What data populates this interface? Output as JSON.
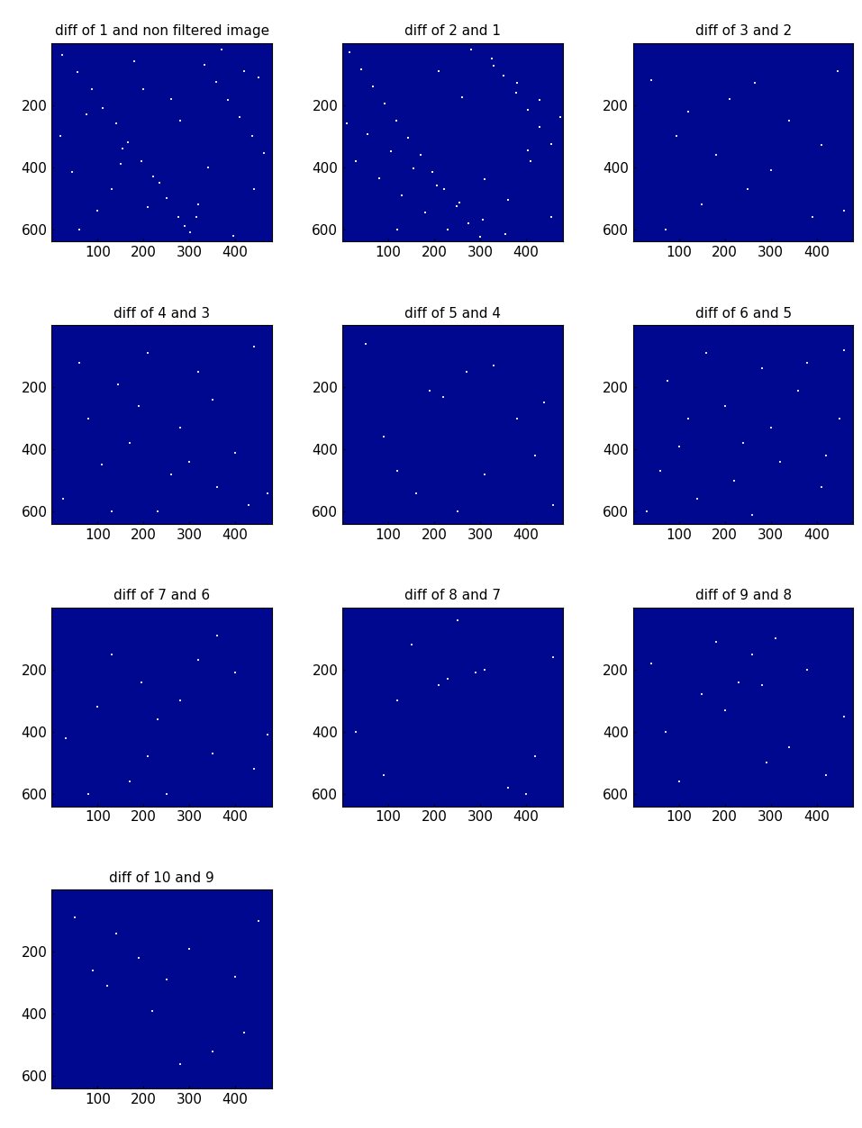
{
  "chart_data": [
    {
      "type": "scatter",
      "title": "diff of 1 and non filtered image",
      "color": "#cfe8ff",
      "marker": "s",
      "x": [
        23,
        57,
        88,
        112,
        140,
        167,
        195,
        221,
        250,
        276,
        301,
        333,
        359,
        384,
        410,
        437,
        462,
        45,
        130,
        210,
        290,
        370,
        450,
        75,
        155,
        235,
        315,
        395,
        18,
        260,
        100,
        180,
        340,
        420,
        60,
        280,
        440,
        200,
        320,
        150
      ],
      "y": [
        40,
        95,
        150,
        210,
        260,
        320,
        380,
        430,
        500,
        560,
        610,
        70,
        125,
        185,
        240,
        300,
        355,
        415,
        470,
        530,
        590,
        20,
        110,
        230,
        340,
        450,
        560,
        620,
        300,
        180,
        540,
        60,
        400,
        90,
        600,
        250,
        470,
        150,
        520,
        390
      ],
      "xlim": [
        0,
        480
      ],
      "ylim": [
        640,
        0
      ],
      "xticks": [
        100,
        200,
        300,
        400
      ],
      "yticks": [
        200,
        400,
        600
      ]
    },
    {
      "type": "scatter",
      "title": "diff of 2 and 1",
      "color": "#e8f4ff",
      "marker": "s",
      "x": [
        15,
        40,
        66,
        92,
        118,
        143,
        170,
        196,
        222,
        248,
        274,
        300,
        326,
        352,
        378,
        404,
        430,
        456,
        30,
        80,
        130,
        180,
        230,
        280,
        330,
        380,
        430,
        475,
        55,
        105,
        155,
        205,
        255,
        305,
        355,
        405,
        455,
        10,
        210,
        310,
        410,
        120,
        260,
        360
      ],
      "y": [
        30,
        85,
        140,
        195,
        250,
        305,
        360,
        415,
        470,
        525,
        580,
        625,
        50,
        105,
        160,
        215,
        270,
        325,
        380,
        435,
        490,
        545,
        600,
        20,
        75,
        130,
        185,
        240,
        295,
        350,
        405,
        460,
        515,
        570,
        615,
        345,
        560,
        260,
        90,
        440,
        380,
        600,
        175,
        505
      ],
      "xlim": [
        0,
        480
      ],
      "ylim": [
        640,
        0
      ],
      "xticks": [
        100,
        200,
        300,
        400
      ],
      "yticks": [
        200,
        400,
        600
      ]
    },
    {
      "type": "scatter",
      "title": "diff of 3 and 2",
      "color": "#cfe8ff",
      "marker": "s",
      "x": [
        40,
        95,
        150,
        210,
        265,
        300,
        340,
        390,
        445,
        70,
        180,
        250,
        410,
        120,
        460
      ],
      "y": [
        120,
        300,
        520,
        180,
        130,
        410,
        250,
        560,
        90,
        600,
        360,
        470,
        330,
        220,
        540
      ],
      "xlim": [
        0,
        480
      ],
      "ylim": [
        640,
        0
      ],
      "xticks": [
        100,
        200,
        300,
        400
      ],
      "yticks": [
        200,
        400,
        600
      ]
    },
    {
      "type": "scatter",
      "title": "diff of 4 and 3",
      "color": "#cfe8ff",
      "marker": "s",
      "x": [
        25,
        60,
        110,
        145,
        190,
        230,
        280,
        320,
        360,
        400,
        440,
        470,
        80,
        170,
        260,
        350,
        430,
        130,
        210,
        300
      ],
      "y": [
        560,
        120,
        450,
        190,
        260,
        600,
        330,
        150,
        520,
        410,
        70,
        540,
        300,
        380,
        480,
        240,
        580,
        600,
        90,
        440
      ],
      "xlim": [
        0,
        480
      ],
      "ylim": [
        640,
        0
      ],
      "xticks": [
        100,
        200,
        300,
        400
      ],
      "yticks": [
        200,
        400,
        600
      ]
    },
    {
      "type": "scatter",
      "title": "diff of 5 and 4",
      "color": "#cfe8ff",
      "marker": "s",
      "x": [
        50,
        120,
        190,
        220,
        270,
        310,
        330,
        380,
        420,
        460,
        90,
        160,
        250,
        440
      ],
      "y": [
        60,
        470,
        210,
        230,
        150,
        480,
        130,
        300,
        420,
        580,
        360,
        540,
        600,
        250
      ],
      "xlim": [
        0,
        480
      ],
      "ylim": [
        640,
        0
      ],
      "xticks": [
        100,
        200,
        300,
        400
      ],
      "yticks": [
        200,
        400,
        600
      ]
    },
    {
      "type": "scatter",
      "title": "diff of 6 and 5",
      "color": "#cfe8ff",
      "marker": "s",
      "x": [
        30,
        75,
        120,
        160,
        200,
        240,
        280,
        320,
        360,
        410,
        450,
        60,
        140,
        220,
        300,
        380,
        460,
        100,
        260,
        420
      ],
      "y": [
        600,
        180,
        300,
        90,
        260,
        380,
        140,
        440,
        210,
        520,
        300,
        470,
        560,
        500,
        330,
        120,
        80,
        390,
        610,
        420
      ],
      "xlim": [
        0,
        480
      ],
      "ylim": [
        640,
        0
      ],
      "xticks": [
        100,
        200,
        300,
        400
      ],
      "yticks": [
        200,
        400,
        600
      ]
    },
    {
      "type": "scatter",
      "title": "diff of 7 and 6",
      "color": "#cfe8ff",
      "marker": "s",
      "x": [
        30,
        80,
        130,
        170,
        195,
        210,
        230,
        280,
        320,
        360,
        400,
        440,
        470,
        100,
        250,
        350
      ],
      "y": [
        420,
        600,
        150,
        560,
        240,
        480,
        360,
        300,
        170,
        90,
        210,
        520,
        410,
        320,
        600,
        470
      ],
      "xlim": [
        0,
        480
      ],
      "ylim": [
        640,
        0
      ],
      "xticks": [
        100,
        200,
        300,
        400
      ],
      "yticks": [
        200,
        400,
        600
      ]
    },
    {
      "type": "scatter",
      "title": "diff of 8 and 7",
      "color": "#cfe8ff",
      "marker": "s",
      "x": [
        30,
        90,
        150,
        210,
        230,
        290,
        310,
        360,
        420,
        460,
        120,
        250,
        400
      ],
      "y": [
        400,
        540,
        120,
        250,
        230,
        210,
        200,
        580,
        480,
        160,
        300,
        40,
        600
      ],
      "xlim": [
        0,
        480
      ],
      "ylim": [
        640,
        0
      ],
      "xticks": [
        100,
        200,
        300,
        400
      ],
      "yticks": [
        200,
        400,
        600
      ]
    },
    {
      "type": "scatter",
      "title": "diff of 9 and 8",
      "color": "#cfe8ff",
      "marker": "s",
      "x": [
        40,
        100,
        150,
        200,
        230,
        260,
        280,
        310,
        340,
        380,
        420,
        460,
        70,
        180,
        290
      ],
      "y": [
        180,
        560,
        280,
        330,
        240,
        150,
        250,
        100,
        450,
        200,
        540,
        350,
        400,
        110,
        500
      ],
      "xlim": [
        0,
        480
      ],
      "ylim": [
        640,
        0
      ],
      "xticks": [
        100,
        200,
        300,
        400
      ],
      "yticks": [
        200,
        400,
        600
      ]
    },
    {
      "type": "scatter",
      "title": "diff of 10 and 9",
      "color": "#cfe8ff",
      "marker": "s",
      "x": [
        50,
        90,
        140,
        190,
        220,
        250,
        300,
        350,
        400,
        450,
        120,
        280,
        420
      ],
      "y": [
        90,
        260,
        140,
        220,
        390,
        290,
        190,
        520,
        280,
        100,
        310,
        560,
        460
      ],
      "xlim": [
        0,
        480
      ],
      "ylim": [
        640,
        0
      ],
      "xticks": [
        100,
        200,
        300,
        400
      ],
      "yticks": [
        200,
        400,
        600
      ]
    }
  ]
}
